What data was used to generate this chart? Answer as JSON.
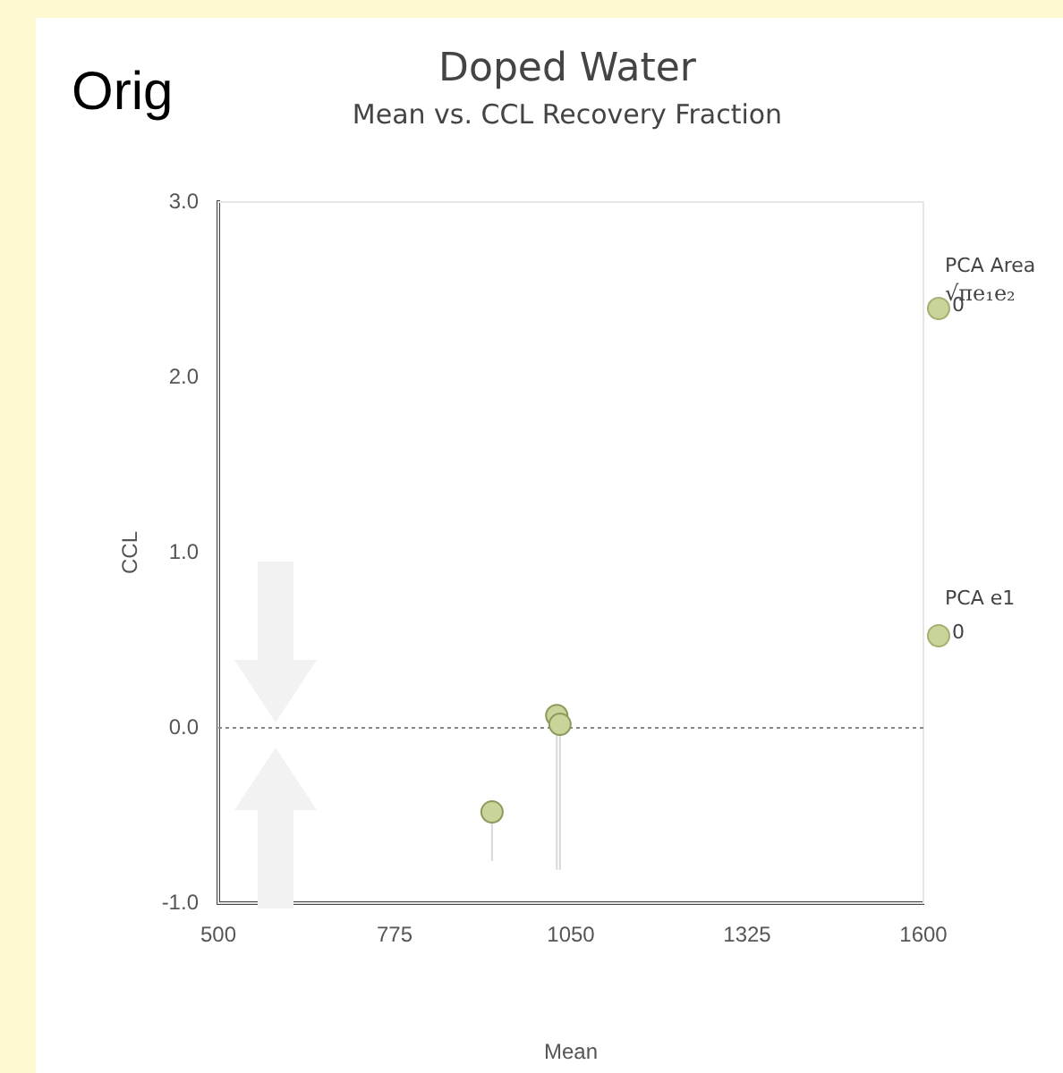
{
  "chart_data": {
    "type": "scatter",
    "title": "Doped Water",
    "subtitle": "Mean vs. CCL Recovery Fraction",
    "xlabel": "Mean",
    "ylabel": "CCL",
    "x": [
      927,
      1028,
      1033
    ],
    "values": [
      -0.48,
      0.07,
      0.02
    ],
    "errors": [
      [
        -0.76,
        -0.48
      ],
      [
        -0.81,
        0.07
      ],
      [
        -0.81,
        0.02
      ]
    ],
    "color": "#c8d49a",
    "marker": "circle",
    "xlim": [
      500,
      1600
    ],
    "xticks": [
      500,
      775,
      1050,
      1325,
      1600
    ],
    "ylim": [
      -1,
      3
    ],
    "yticks": [
      {
        "value": -1,
        "label": "-1.0"
      },
      {
        "value": 0,
        "label": "0.0"
      },
      {
        "value": 1,
        "label": "1.0"
      },
      {
        "value": 2,
        "label": "2.0"
      },
      {
        "value": 3,
        "label": "3.0"
      }
    ],
    "grid": false,
    "legend": false,
    "ref_lines": [
      {
        "axis": "y",
        "value": 0,
        "line_style": "dotted",
        "color": "#888888"
      }
    ],
    "annotations": [
      "Orig",
      "PCA Area",
      "√πe₁e₂",
      "0",
      "PCA e1",
      "0"
    ]
  }
}
